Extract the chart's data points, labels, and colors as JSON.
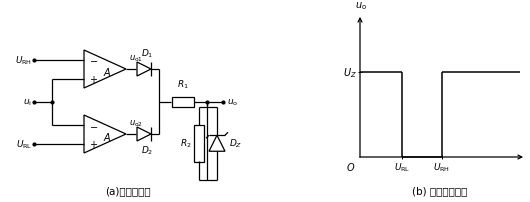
{
  "title_a": "(a)窗口比较器",
  "title_b": "(b) 电压传输特性",
  "bg_color": "#ffffff",
  "line_color": "#000000",
  "lw": 0.9
}
